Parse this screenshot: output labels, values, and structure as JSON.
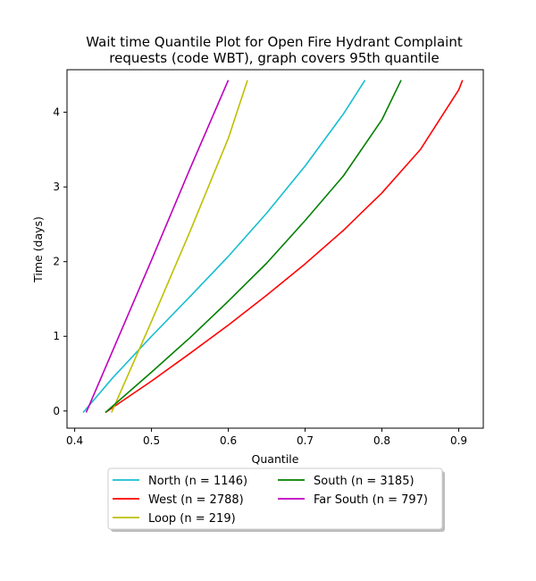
{
  "chart_data": {
    "type": "line",
    "title_line1": "Wait time Quantile Plot for Open Fire Hydrant Complaint",
    "title_line2": "requests (code WBT), graph covers 95th quantile",
    "xlabel": "Quantile",
    "ylabel": "Time (days)",
    "xlim": [
      0.39,
      0.932
    ],
    "ylim": [
      -0.23,
      4.57
    ],
    "xticks": [
      0.4,
      0.5,
      0.6,
      0.7,
      0.8,
      0.9
    ],
    "yticks": [
      0,
      1,
      2,
      3,
      4
    ],
    "grid": false,
    "legend_placement": "below plot, 2 columns",
    "series": [
      {
        "name": "North (n = 1146)",
        "color": "#17becf",
        "x": [
          0.411,
          0.45,
          0.5,
          0.55,
          0.6,
          0.65,
          0.7,
          0.75,
          0.778
        ],
        "y": [
          -0.02,
          0.45,
          1.0,
          1.53,
          2.07,
          2.65,
          3.28,
          3.98,
          4.43
        ]
      },
      {
        "name": "West (n = 2788)",
        "color": "#ff0000",
        "x": [
          0.44,
          0.5,
          0.55,
          0.6,
          0.65,
          0.7,
          0.75,
          0.8,
          0.85,
          0.9,
          0.905
        ],
        "y": [
          -0.02,
          0.4,
          0.77,
          1.15,
          1.55,
          1.97,
          2.42,
          2.92,
          3.5,
          4.3,
          4.43
        ]
      },
      {
        "name": "Loop (n = 219)",
        "color": "#bfbf00",
        "x": [
          0.448,
          0.5,
          0.55,
          0.6,
          0.625
        ],
        "y": [
          -0.02,
          1.2,
          2.4,
          3.65,
          4.43
        ]
      },
      {
        "name": "South (n = 3185)",
        "color": "#008000",
        "x": [
          0.44,
          0.5,
          0.55,
          0.6,
          0.65,
          0.7,
          0.75,
          0.8,
          0.825
        ],
        "y": [
          -0.02,
          0.52,
          0.98,
          1.47,
          1.98,
          2.55,
          3.15,
          3.9,
          4.43
        ]
      },
      {
        "name": "Far South (n = 797)",
        "color": "#bf00bf",
        "x": [
          0.415,
          0.45,
          0.5,
          0.55,
          0.6
        ],
        "y": [
          -0.02,
          0.82,
          2.02,
          3.24,
          4.43
        ]
      }
    ],
    "legend_columns": [
      [
        "North (n = 1146)",
        "West (n = 2788)",
        "Loop (n = 219)"
      ],
      [
        "South (n = 3185)",
        "Far South (n = 797)"
      ]
    ]
  }
}
